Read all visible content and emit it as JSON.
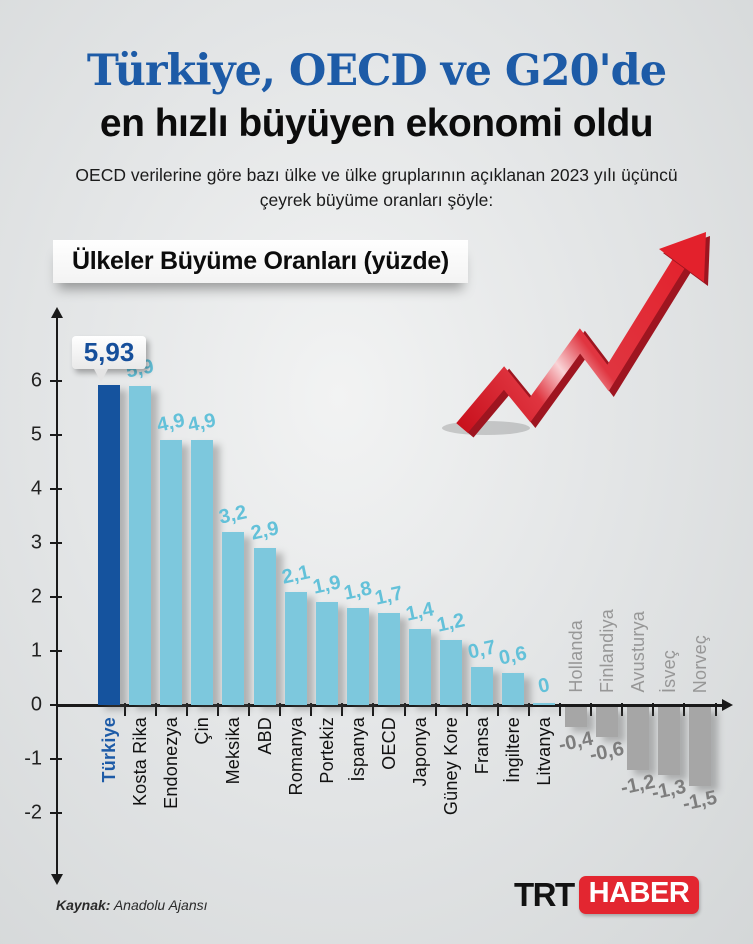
{
  "header": {
    "title_line1": "Türkiye, OECD ve G20'de",
    "title_line2": "en hızlı büyüyen ekonomi oldu",
    "subtitle": "OECD verilerine göre bazı ülke ve ülke gruplarının açıklanan 2023 yılı üçüncü çeyrek büyüme oranları şöyle:"
  },
  "chart_data": {
    "type": "bar",
    "title": "Ülkeler Büyüme Oranları (yüzde)",
    "categories": [
      "Türkiye",
      "Kosta Rika",
      "Endonezya",
      "Çin",
      "Meksika",
      "ABD",
      "Romanya",
      "Portekiz",
      "İspanya",
      "OECD",
      "Japonya",
      "Güney Kore",
      "Fransa",
      "İngiltere",
      "Litvanya",
      "Hollanda",
      "Finlandiya",
      "Avusturya",
      "İsveç",
      "Norveç"
    ],
    "values": [
      5.93,
      5.9,
      4.9,
      4.9,
      3.2,
      2.9,
      2.1,
      1.9,
      1.8,
      1.7,
      1.4,
      1.2,
      0.7,
      0.6,
      0,
      -0.4,
      -0.6,
      -1.2,
      -1.3,
      -1.5
    ],
    "value_labels": [
      "5,93",
      "5,9",
      "4,9",
      "4,9",
      "3,2",
      "2,9",
      "2,1",
      "1,9",
      "1,8",
      "1,7",
      "1,4",
      "1,2",
      "0,7",
      "0,6",
      "0",
      "-0,4",
      "-0,6",
      "-1,2",
      "-1,3",
      "-1,5"
    ],
    "yticks": [
      6,
      5,
      4,
      3,
      2,
      1,
      0,
      -1,
      -2
    ],
    "ylim": [
      -2,
      6
    ],
    "highlight_category": "Türkiye",
    "legend": "none",
    "grid": "off",
    "colors": {
      "highlight_bar": "#15539e",
      "positive_bar": "#7dc8dd",
      "negative_bar": "#a6a6a6",
      "positive_value_text": "#63c1d9",
      "negative_value_text": "#7d7d7d",
      "highlight_label_text": "#1d5ba7",
      "category_text": "#111111",
      "negative_category_text": "#979797",
      "axis": "#1a1a1a"
    }
  },
  "footer": {
    "source_label": "Kaynak:",
    "source_value": " Anadolu Ajansı",
    "logo_trt": "TRT",
    "logo_haber": "HABER"
  },
  "decor": {
    "arrow_icon_color": "#e02b35",
    "title_color": "#1d5ba7"
  }
}
